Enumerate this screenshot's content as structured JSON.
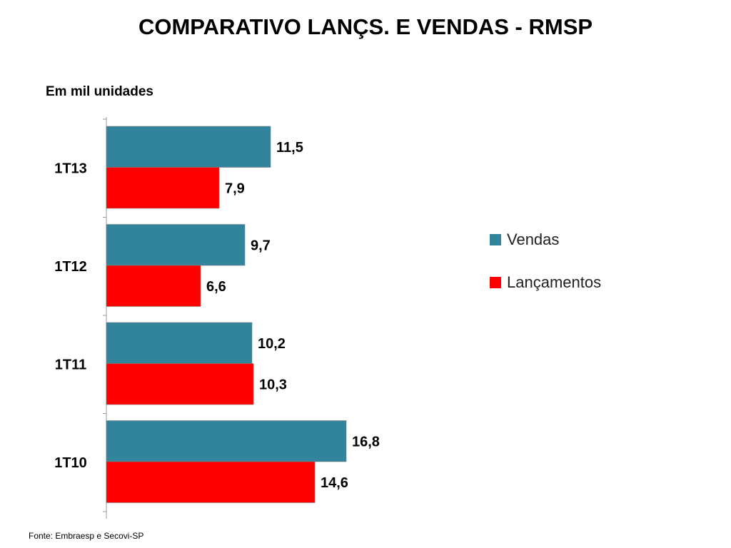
{
  "title": "COMPARATIVO LANÇS. E VENDAS - RMSP",
  "unit_label": "Em mil unidades",
  "source": "Fonte: Embraesp e Secovi-SP",
  "colors": {
    "vendas": "#31849B",
    "lancamentos": "#FF0000"
  },
  "chart_data": {
    "type": "bar",
    "orientation": "horizontal",
    "categories": [
      "1T13",
      "1T12",
      "1T11",
      "1T10"
    ],
    "series": [
      {
        "name": "Vendas",
        "values": [
          11.5,
          9.7,
          10.2,
          16.8
        ],
        "labels": [
          "11,5",
          "9,7",
          "10,2",
          "16,8"
        ]
      },
      {
        "name": "Lançamentos",
        "values": [
          7.9,
          6.6,
          10.3,
          14.6
        ],
        "labels": [
          "7,9",
          "6,6",
          "10,3",
          "14,6"
        ]
      }
    ],
    "xlim": [
      0,
      20
    ],
    "legend_position": "right",
    "grid": false
  }
}
